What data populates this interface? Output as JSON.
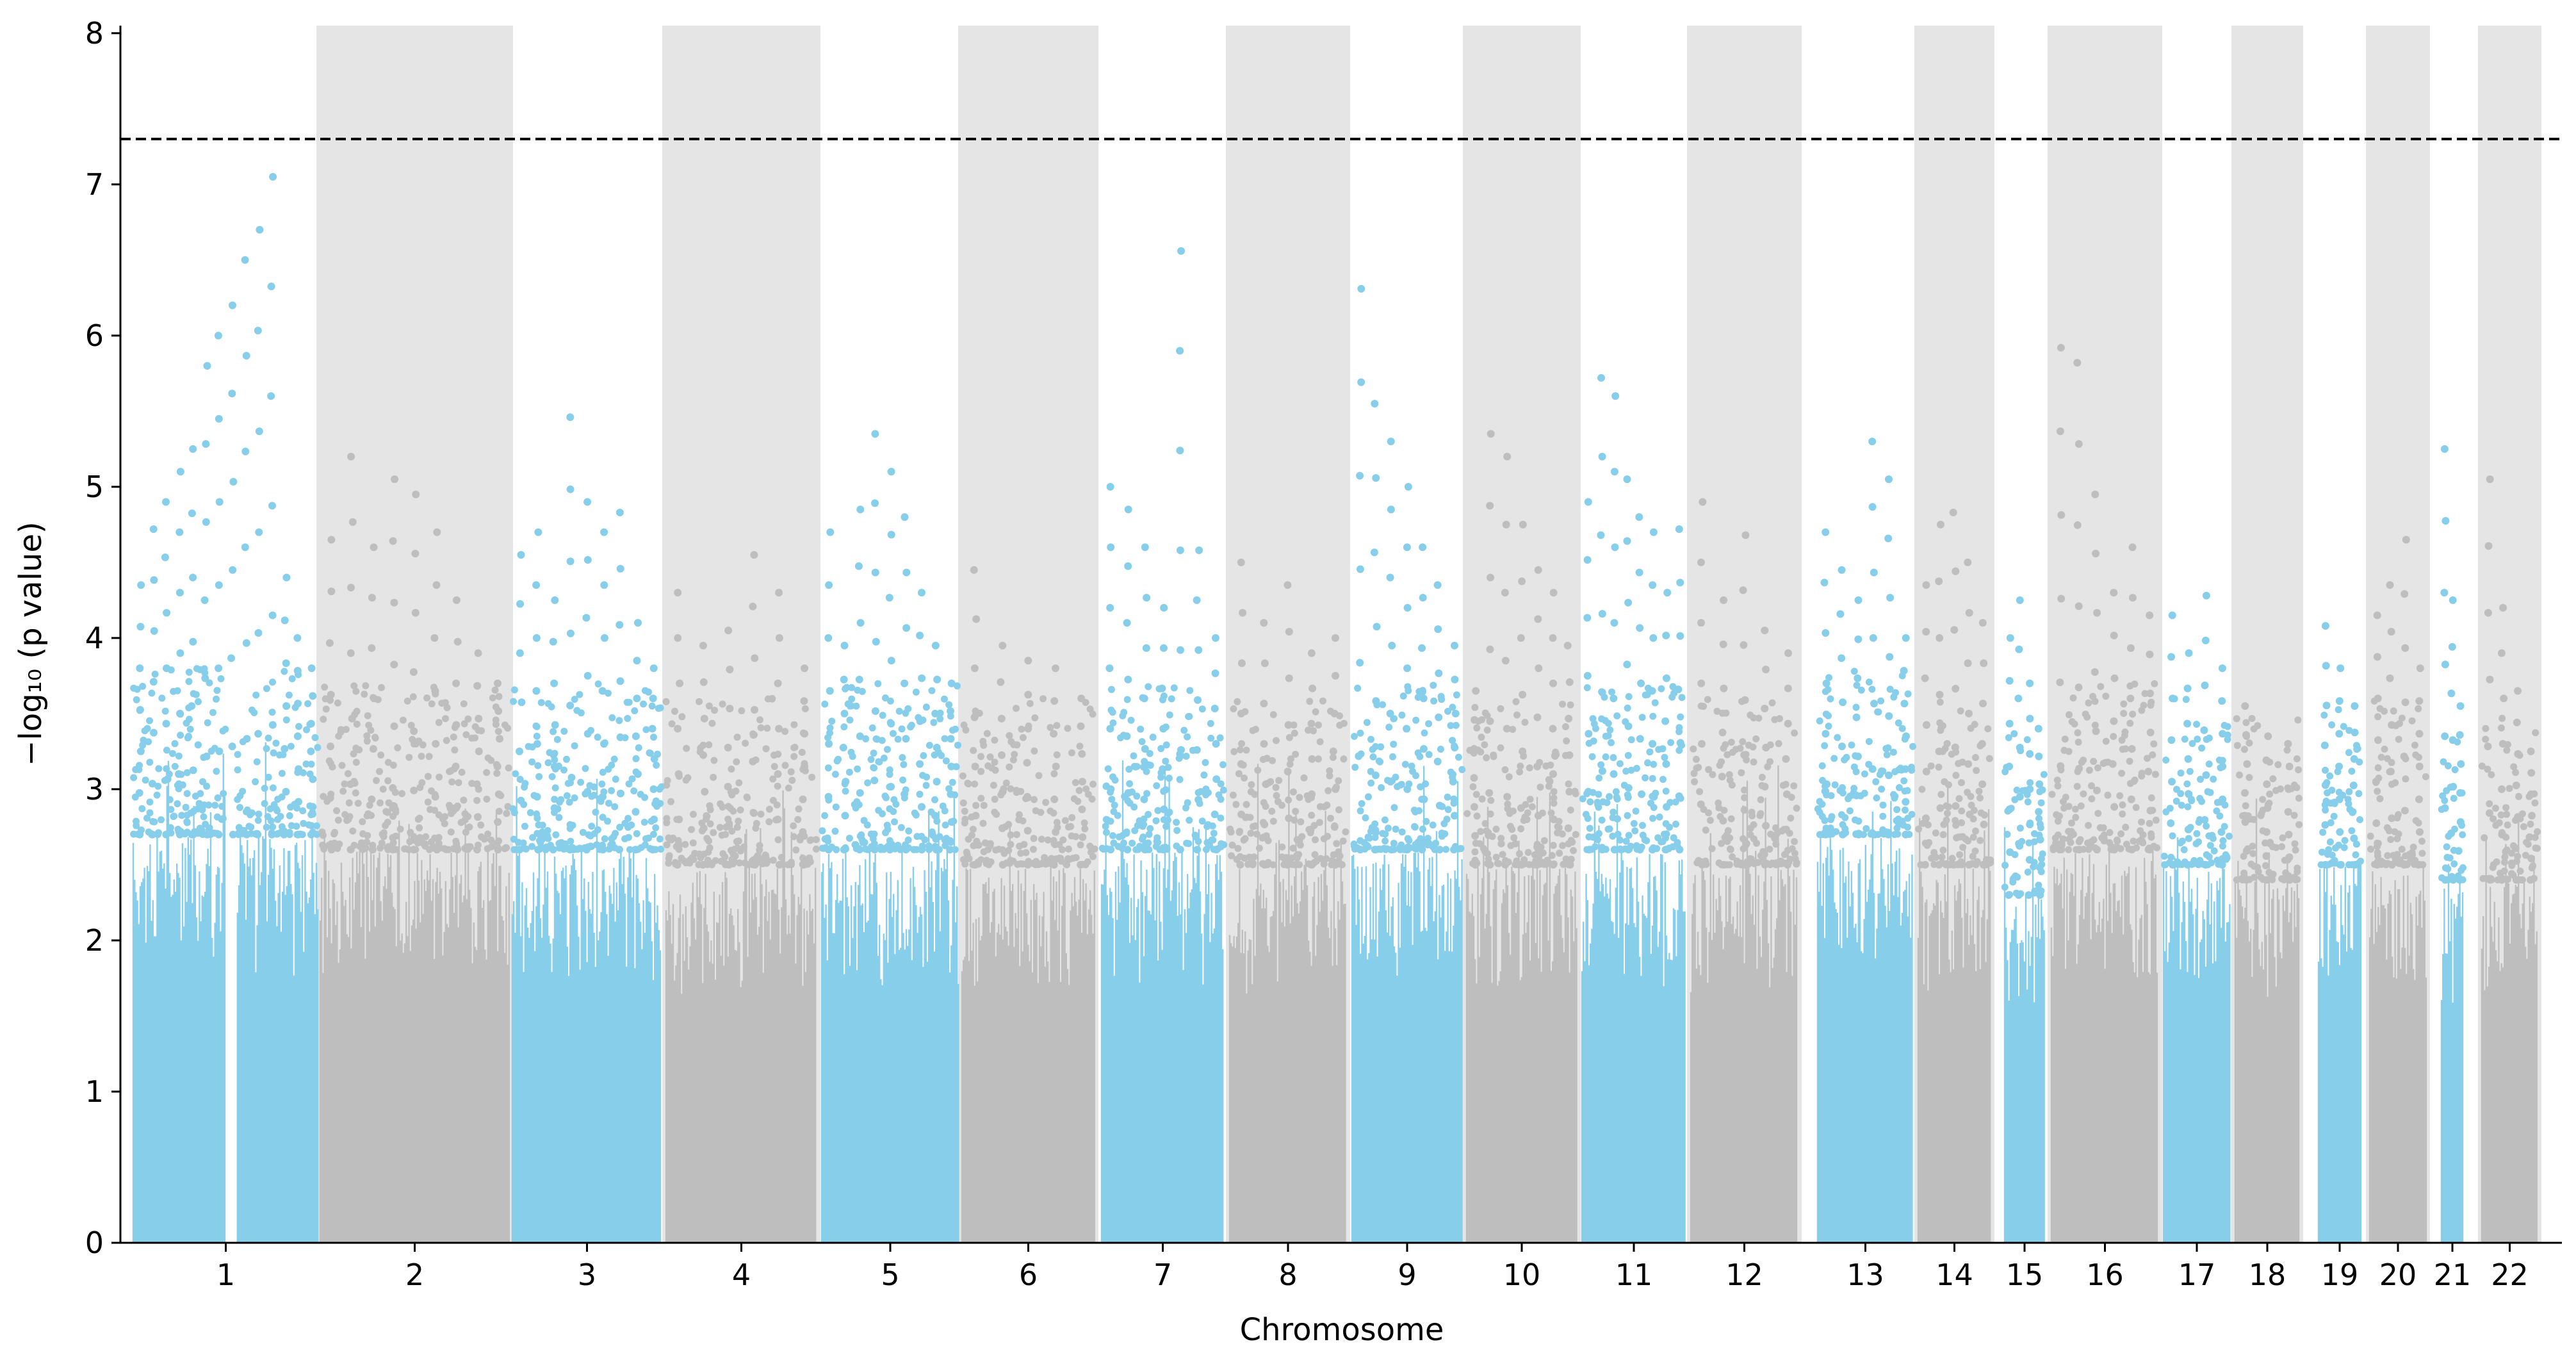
{
  "chart_data": {
    "type": "scatter",
    "subtype": "manhattan",
    "title": "",
    "xlabel": "Chromosome",
    "ylabel": "−log₁₀ (p value)",
    "ylim": [
      0,
      8.05
    ],
    "yticks": [
      0,
      1,
      2,
      3,
      4,
      5,
      6,
      7,
      8
    ],
    "threshold": 7.3,
    "colors": {
      "odd_points": "#87ceeb",
      "even_points": "#bebebe",
      "band": "#e5e5e5",
      "threshold_line": "#000000",
      "axis": "#000000"
    },
    "chromosomes": [
      {
        "label": "1",
        "typical_max": 2.7,
        "peaks": [
          4.35,
          4.72,
          4.9,
          5.1,
          5.25,
          5.8,
          6.0,
          6.2,
          6.5,
          6.7,
          7.05,
          4.4,
          4.0,
          3.8
        ]
      },
      {
        "label": "2",
        "typical_max": 2.6,
        "peaks": [
          4.65,
          5.2,
          4.6,
          5.05,
          4.95,
          4.7,
          4.25,
          3.9,
          3.7
        ]
      },
      {
        "label": "3",
        "typical_max": 2.6,
        "peaks": [
          4.55,
          4.7,
          4.25,
          5.46,
          4.9,
          4.7,
          4.83,
          4.1,
          3.8
        ]
      },
      {
        "label": "4",
        "typical_max": 2.5,
        "peaks": [
          4.3,
          3.95,
          4.05,
          4.55,
          4.3,
          3.8
        ]
      },
      {
        "label": "5",
        "typical_max": 2.6,
        "peaks": [
          4.7,
          3.95,
          4.85,
          5.35,
          5.1,
          4.8,
          4.3,
          3.95,
          3.7
        ]
      },
      {
        "label": "6",
        "typical_max": 2.5,
        "peaks": [
          4.45,
          3.95,
          3.85,
          3.8,
          3.6
        ]
      },
      {
        "label": "7",
        "typical_max": 2.6,
        "peaks": [
          5.0,
          4.85,
          4.6,
          4.2,
          6.56,
          4.58,
          4.0
        ]
      },
      {
        "label": "8",
        "typical_max": 2.5,
        "peaks": [
          4.5,
          4.1,
          4.35,
          3.9,
          4.0
        ]
      },
      {
        "label": "9",
        "typical_max": 2.6,
        "peaks": [
          6.31,
          5.55,
          5.3,
          5.0,
          4.6,
          4.35,
          3.95
        ]
      },
      {
        "label": "10",
        "typical_max": 2.5,
        "peaks": [
          3.65,
          5.35,
          5.2,
          4.75,
          4.45,
          4.3,
          3.95
        ]
      },
      {
        "label": "11",
        "typical_max": 2.6,
        "peaks": [
          4.9,
          5.72,
          5.6,
          5.05,
          4.8,
          4.7,
          4.3,
          4.72
        ]
      },
      {
        "label": "12",
        "typical_max": 2.5,
        "peaks": [
          4.9,
          4.25,
          4.68,
          4.05,
          3.9
        ]
      },
      {
        "label": "13",
        "typical_max": 2.7,
        "peaks": [
          4.7,
          4.45,
          4.25,
          5.3,
          5.05,
          4.0
        ]
      },
      {
        "label": "14",
        "typical_max": 2.5,
        "peaks": [
          4.35,
          4.75,
          4.83,
          4.5,
          4.1
        ]
      },
      {
        "label": "15",
        "typical_max": 2.3,
        "peaks": [
          4.0,
          4.25,
          3.7,
          3.4
        ]
      },
      {
        "label": "16",
        "typical_max": 2.6,
        "peaks": [
          5.92,
          5.82,
          4.95,
          4.3,
          4.6,
          4.15
        ]
      },
      {
        "label": "17",
        "typical_max": 2.5,
        "peaks": [
          4.15,
          3.9,
          4.28,
          3.8
        ]
      },
      {
        "label": "18",
        "typical_max": 2.4,
        "peaks": [
          3.55,
          3.35,
          3.3
        ]
      },
      {
        "label": "19",
        "typical_max": 2.5,
        "peaks": [
          4.08,
          3.8,
          3.55
        ]
      },
      {
        "label": "20",
        "typical_max": 2.5,
        "peaks": [
          4.15,
          4.35,
          4.65,
          3.8
        ]
      },
      {
        "label": "21",
        "typical_max": 2.4,
        "peaks": [
          5.25,
          4.25,
          3.55
        ]
      },
      {
        "label": "22",
        "typical_max": 2.4,
        "peaks": [
          5.05,
          4.2,
          3.65,
          3.25
        ]
      }
    ]
  }
}
